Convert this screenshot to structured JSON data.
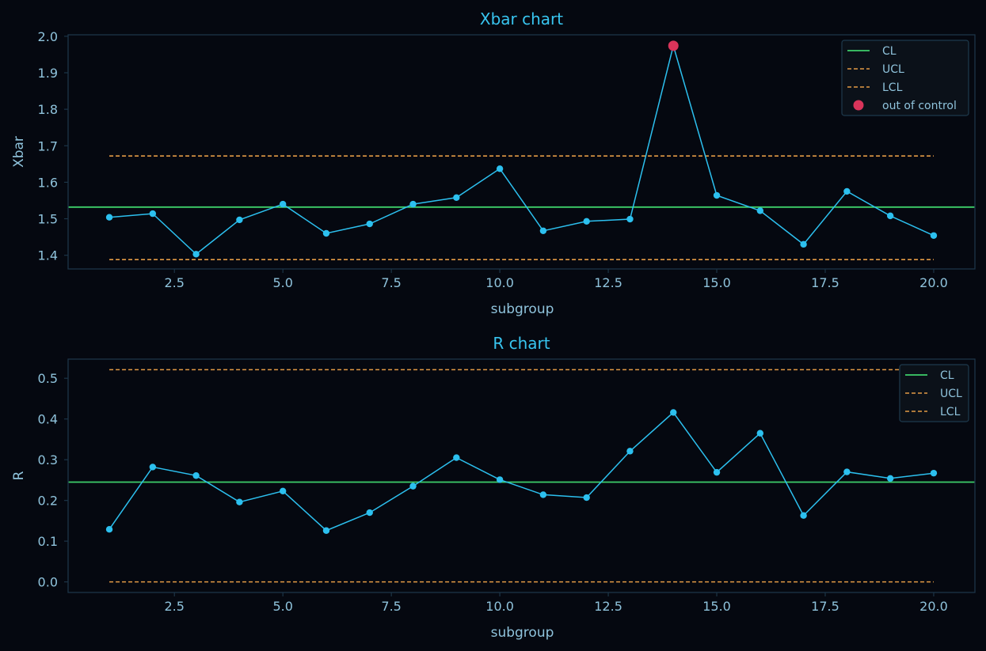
{
  "colors": {
    "background": "#050810",
    "axes_frame": "#1c3547",
    "series": "#2cc0ef",
    "center_line": "#3ecf6a",
    "limit_line": "#e39a45",
    "out_of_control": "#d9345a",
    "text": "#8fc3dc",
    "title": "#38c5f0"
  },
  "chart_data": [
    {
      "type": "line",
      "title": "Xbar chart",
      "xlabel": "subgroup",
      "ylabel": "Xbar",
      "xlim": [
        0.05,
        20.95
      ],
      "ylim": [
        1.3625,
        2.004
      ],
      "xticks": [
        2.5,
        5.0,
        7.5,
        10.0,
        12.5,
        15.0,
        17.5,
        20.0
      ],
      "xtick_labels": [
        "2.5",
        "5.0",
        "7.5",
        "10.0",
        "12.5",
        "15.0",
        "17.5",
        "20.0"
      ],
      "yticks": [
        1.4,
        1.5,
        1.6,
        1.7,
        1.8,
        1.9,
        2.0
      ],
      "ytick_labels": [
        "1.4",
        "1.5",
        "1.6",
        "1.7",
        "1.8",
        "1.9",
        "2.0"
      ],
      "x": [
        1,
        2,
        3,
        4,
        5,
        6,
        7,
        8,
        9,
        10,
        11,
        12,
        13,
        14,
        15,
        16,
        17,
        18,
        19,
        20
      ],
      "values": [
        1.504,
        1.514,
        1.403,
        1.497,
        1.54,
        1.46,
        1.486,
        1.54,
        1.558,
        1.637,
        1.467,
        1.493,
        1.499,
        1.974,
        1.564,
        1.522,
        1.43,
        1.575,
        1.508,
        1.454
      ],
      "cl": 1.532,
      "ucl": 1.672,
      "lcl": 1.388,
      "limits_x": [
        1,
        20
      ],
      "out_of_control": [
        {
          "x": 14,
          "y": 1.974
        }
      ],
      "legend": [
        "CL",
        "UCL",
        "LCL",
        "out of control"
      ],
      "legend_position": "upper right",
      "grid": false
    },
    {
      "type": "line",
      "title": "R chart",
      "xlabel": "subgroup",
      "ylabel": "R",
      "xlim": [
        0.05,
        20.95
      ],
      "ylim": [
        -0.026,
        0.547
      ],
      "xticks": [
        2.5,
        5.0,
        7.5,
        10.0,
        12.5,
        15.0,
        17.5,
        20.0
      ],
      "xtick_labels": [
        "2.5",
        "5.0",
        "7.5",
        "10.0",
        "12.5",
        "15.0",
        "17.5",
        "20.0"
      ],
      "yticks": [
        0.0,
        0.1,
        0.2,
        0.3,
        0.4,
        0.5
      ],
      "ytick_labels": [
        "0.0",
        "0.1",
        "0.2",
        "0.3",
        "0.4",
        "0.5"
      ],
      "x": [
        1,
        2,
        3,
        4,
        5,
        6,
        7,
        8,
        9,
        10,
        11,
        12,
        13,
        14,
        15,
        16,
        17,
        18,
        19,
        20
      ],
      "values": [
        0.129,
        0.282,
        0.261,
        0.196,
        0.223,
        0.126,
        0.17,
        0.235,
        0.305,
        0.251,
        0.214,
        0.207,
        0.321,
        0.416,
        0.269,
        0.365,
        0.163,
        0.27,
        0.254,
        0.267
      ],
      "cl": 0.245,
      "ucl": 0.521,
      "lcl": 0.0,
      "limits_x": [
        1,
        20
      ],
      "out_of_control": [],
      "legend": [
        "CL",
        "UCL",
        "LCL"
      ],
      "legend_position": "upper right",
      "grid": false
    }
  ]
}
